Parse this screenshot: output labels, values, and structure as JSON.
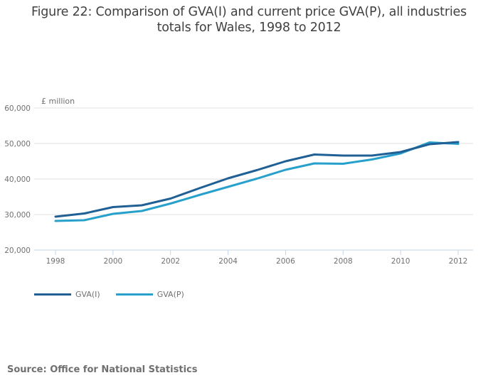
{
  "title_lines": [
    "Figure 22: Comparison of GVA(I) and current price GVA(P), all industries",
    "totals for Wales, 1998 to 2012"
  ],
  "source": "Source: Office for National Statistics",
  "chart_data": {
    "type": "line",
    "title": "Figure 22: Comparison of GVA(I) and current price GVA(P), all industries totals for Wales, 1998 to 2012",
    "xlabel": "",
    "ylabel": "£ million",
    "x": [
      1998,
      1999,
      2000,
      2001,
      2002,
      2003,
      2004,
      2005,
      2006,
      2007,
      2008,
      2009,
      2010,
      2011,
      2012
    ],
    "x_ticks": [
      "1998",
      "2000",
      "2002",
      "2004",
      "2006",
      "2008",
      "2010",
      "2012"
    ],
    "x_tick_values": [
      1998,
      2000,
      2002,
      2004,
      2006,
      2008,
      2010,
      2012
    ],
    "xlim": [
      1998,
      2012
    ],
    "ylim": [
      20000,
      60000
    ],
    "y_ticks": [
      20000,
      30000,
      40000,
      50000,
      60000
    ],
    "y_tick_labels": [
      "20,000",
      "30,000",
      "40,000",
      "50,000",
      "60,000"
    ],
    "grid": true,
    "legend_position": "bottom-left",
    "series": [
      {
        "name": "GVA(I)",
        "color": "#206095",
        "values": [
          29400,
          30300,
          32100,
          32600,
          34500,
          37400,
          40200,
          42500,
          45000,
          46900,
          46600,
          46600,
          47600,
          49800,
          50400
        ]
      },
      {
        "name": "GVA(P)",
        "color": "#27a0cc",
        "values": [
          28200,
          28400,
          30200,
          31000,
          33100,
          35500,
          37800,
          40100,
          42600,
          44400,
          44300,
          45500,
          47200,
          50300,
          49900
        ]
      }
    ]
  }
}
